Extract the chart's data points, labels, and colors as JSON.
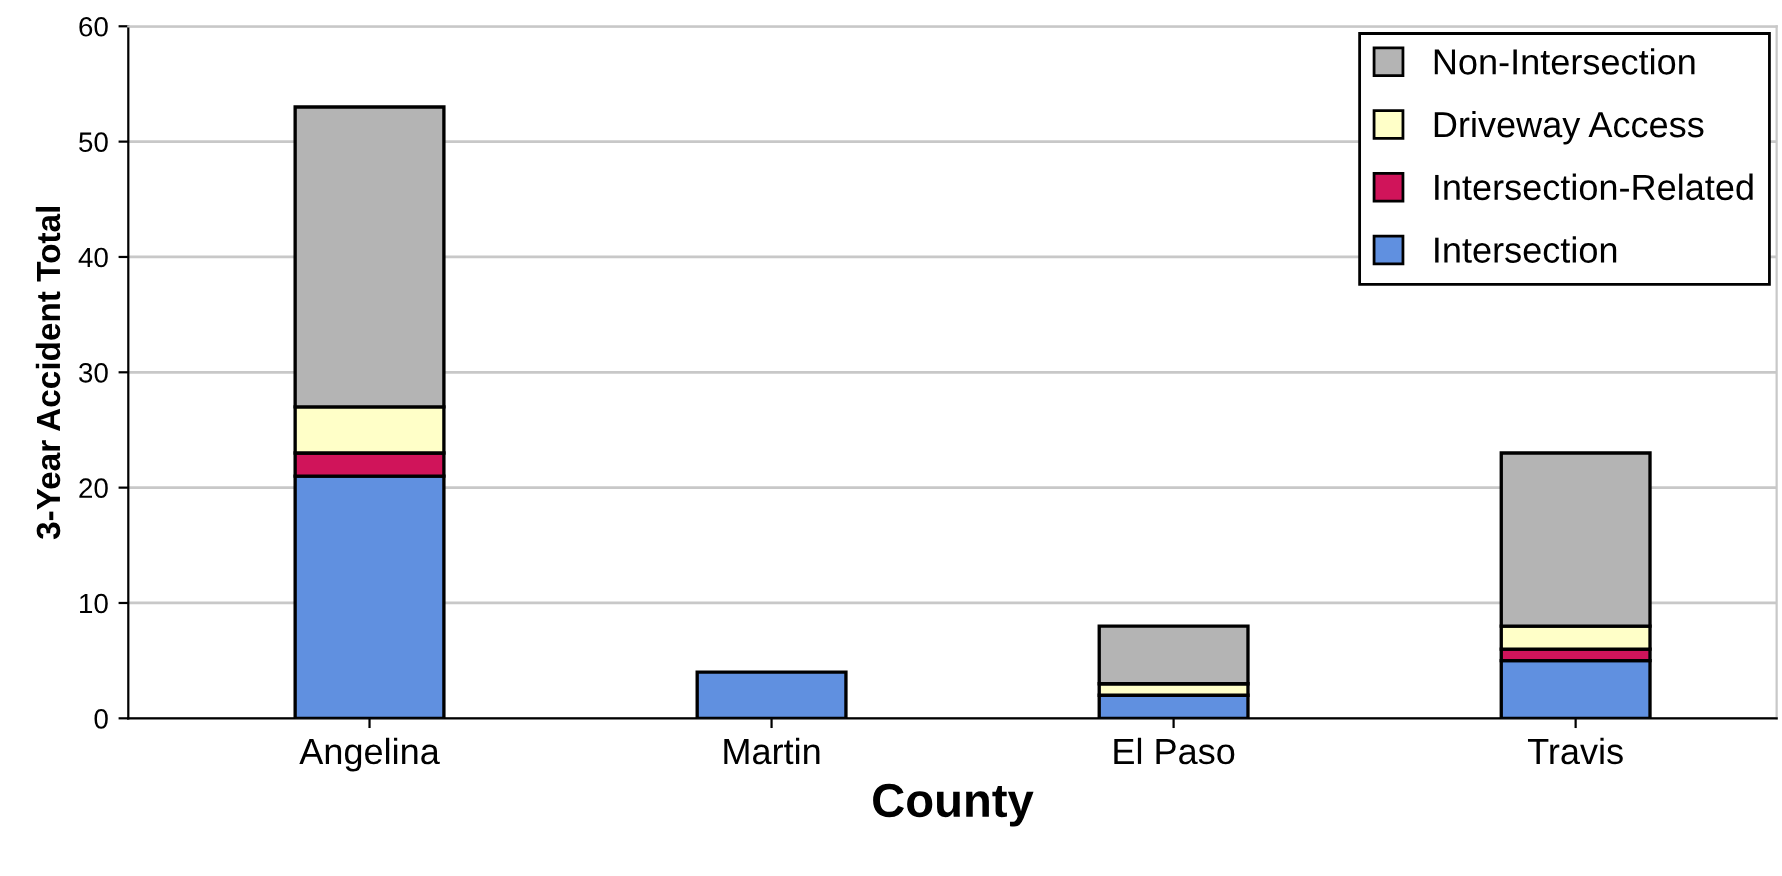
{
  "chart_data": {
    "type": "bar",
    "stacked": true,
    "xlabel": "County",
    "ylabel": "3-Year Accident Total",
    "categories": [
      "Angelina",
      "Martin",
      "El Paso",
      "Travis"
    ],
    "series": [
      {
        "name": "Intersection",
        "color": "#6090e0",
        "values": [
          21,
          4,
          2,
          5
        ]
      },
      {
        "name": "Intersection-Related",
        "color": "#d0145a",
        "values": [
          2,
          0,
          0,
          1
        ]
      },
      {
        "name": "Driveway Access",
        "color": "#ffffc8",
        "values": [
          4,
          0,
          1,
          2
        ]
      },
      {
        "name": "Non-Intersection",
        "color": "#b4b4b4",
        "values": [
          26,
          0,
          5,
          15
        ]
      }
    ],
    "ylim": [
      0,
      60
    ],
    "yticks": [
      0,
      10,
      20,
      30,
      40,
      50,
      60
    ],
    "grid": "y",
    "legend": "top right"
  }
}
